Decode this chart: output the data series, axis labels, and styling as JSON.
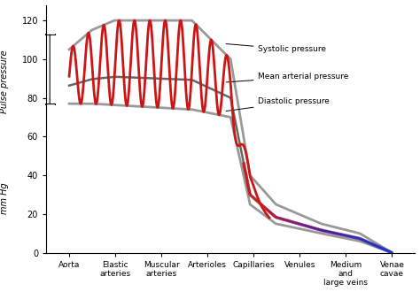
{
  "title": "",
  "ylabel_top": "Pulse pressure",
  "ylabel_bottom": "mm Hg",
  "ylim": [
    0,
    128
  ],
  "yticks": [
    0,
    20,
    40,
    60,
    80,
    100,
    120
  ],
  "x_categories": [
    "Aorta",
    "Elastic\narteries",
    "Muscular\narteries",
    "Arterioles",
    "Capillaries",
    "Venules",
    "Medium\nand\nlarge veins",
    "Venae\ncavae"
  ],
  "background_color": "#ffffff",
  "annotation_systolic": "Systolic pressure",
  "annotation_mean": "Mean arterial pressure",
  "annotation_diastolic": "Diastolic pressure",
  "colors": {
    "red": "#CC1515",
    "gray_sys": "#999999",
    "gray_dia": "#999999",
    "gray_mean": "#666666",
    "purple": "#884488",
    "blue": "#2255AA"
  }
}
